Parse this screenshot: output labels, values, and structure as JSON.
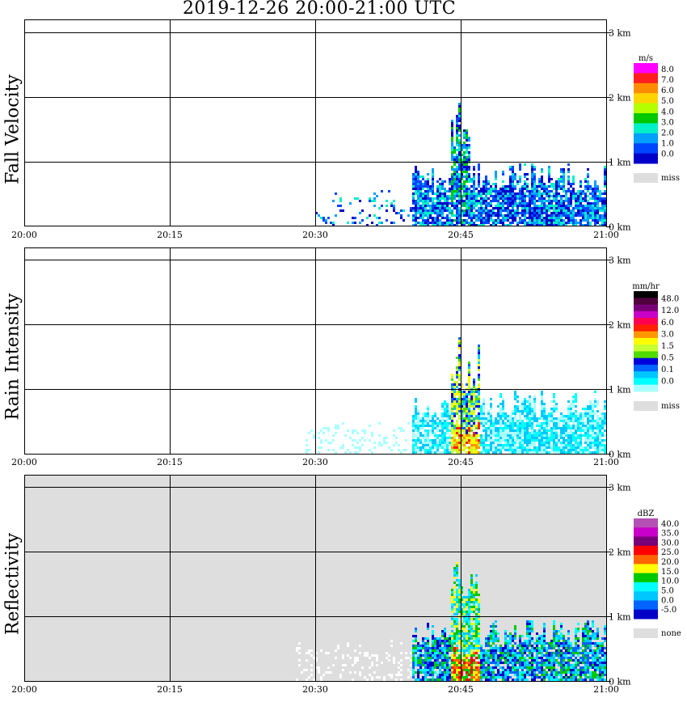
{
  "title": "2019-12-26   20:00-21:00 UTC",
  "x_ticks": [
    "20:00",
    "20:15",
    "20:30",
    "20:45",
    "21:00"
  ],
  "y_ticks": [
    "0 km",
    "1 km",
    "2 km",
    "3 km"
  ],
  "colors": {
    "background_missing": "#dedede",
    "grid": "#000000"
  },
  "chart_data": [
    {
      "type": "heatmap",
      "title": "Fall Velocity",
      "xlabel": "",
      "ylabel": "Fall Velocity",
      "xlim": [
        "20:00",
        "21:00"
      ],
      "ylim": [
        0,
        3.2
      ],
      "y_units": "km",
      "grid": true,
      "legend_position": "right",
      "colorbar": {
        "unit": "m/s",
        "labels": [
          "8.0",
          "7.0",
          "6.0",
          "5.0",
          "4.0",
          "3.0",
          "2.0",
          "1.0",
          "0.0"
        ],
        "colors": [
          "#ff00ff",
          "#ff1e1e",
          "#ff8c00",
          "#ffd400",
          "#b4ff00",
          "#00c800",
          "#00f0c8",
          "#00a0ff",
          "#0046ff",
          "#0000c8"
        ],
        "missing_label": "miss",
        "missing_color": "#dedede"
      },
      "echoes": [
        {
          "x_start": "20:30",
          "x_end": "20:40",
          "top_km": 0.6,
          "value": "0.0-2.0 (sparse)"
        },
        {
          "x_start": "20:40",
          "x_end": "20:44",
          "top_km": 1.0,
          "value": "1.0-2.0"
        },
        {
          "x_start": "20:44",
          "x_end": "20:45",
          "top_km": 2.0,
          "value": "1.0-3.0"
        },
        {
          "x_start": "20:45",
          "x_end": "20:46",
          "top_km": 1.8,
          "value": "1.0-4.0"
        },
        {
          "x_start": "20:46",
          "x_end": "21:00",
          "top_km": 1.0,
          "value": "0.0-2.0"
        }
      ]
    },
    {
      "type": "heatmap",
      "title": "Rain Intensity",
      "xlabel": "",
      "ylabel": "Rain Intensity",
      "xlim": [
        "20:00",
        "21:00"
      ],
      "ylim": [
        0,
        3.2
      ],
      "y_units": "km",
      "grid": true,
      "legend_position": "right",
      "colorbar": {
        "unit": "mm/hr",
        "labels": [
          "48.0",
          "12.0",
          "6.0",
          "3.0",
          "1.5",
          "0.5",
          "0.1",
          "0.0"
        ],
        "colors": [
          "#000000",
          "#50003c",
          "#780078",
          "#c800c8",
          "#ff0050",
          "#ff1e00",
          "#ff9600",
          "#ffff00",
          "#c8ff32",
          "#50dc00",
          "#0000dc",
          "#0064ff",
          "#00c8ff",
          "#00ffff",
          "#aaffff"
        ],
        "missing_label": "miss",
        "missing_color": "#dedede"
      },
      "echoes": [
        {
          "x_start": "20:29",
          "x_end": "20:40",
          "top_km": 0.6,
          "value": "0.0-0.1 (sparse)"
        },
        {
          "x_start": "20:40",
          "x_end": "20:44",
          "top_km": 0.9,
          "value": "0.1-0.5"
        },
        {
          "x_start": "20:44",
          "x_end": "20:45",
          "top_km": 2.0,
          "value": "0.5-3.0"
        },
        {
          "x_start": "20:45",
          "x_end": "20:47",
          "top_km": 1.8,
          "value": "1.5-12.0"
        },
        {
          "x_start": "20:47",
          "x_end": "21:00",
          "top_km": 1.0,
          "value": "0.0-0.1"
        }
      ]
    },
    {
      "type": "heatmap",
      "title": "Reflectivity",
      "xlabel": "",
      "ylabel": "Reflectivity",
      "xlim": [
        "20:00",
        "21:00"
      ],
      "ylim": [
        0,
        3.2
      ],
      "y_units": "km",
      "grid": true,
      "legend_position": "right",
      "colorbar": {
        "unit": "dBZ",
        "labels": [
          "40.0",
          "35.0",
          "30.0",
          "25.0",
          "20.0",
          "15.0",
          "10.0",
          "5.0",
          "0.0",
          "-5.0"
        ],
        "colors": [
          "#b450b4",
          "#c800c8",
          "#780078",
          "#ff0000",
          "#ff6400",
          "#ffff00",
          "#00c800",
          "#00ffff",
          "#00c8ff",
          "#0064ff",
          "#0000c8"
        ],
        "missing_label": "none",
        "missing_color": "#dedede"
      },
      "echoes": [
        {
          "x_start": "20:28",
          "x_end": "20:40",
          "top_km": 0.7,
          "value": "< -5.0 (sparse)"
        },
        {
          "x_start": "20:40",
          "x_end": "20:44",
          "top_km": 1.0,
          "value": "0.0-10.0"
        },
        {
          "x_start": "20:44",
          "x_end": "20:45",
          "top_km": 2.0,
          "value": "10.0-25.0"
        },
        {
          "x_start": "20:45",
          "x_end": "20:47",
          "top_km": 1.9,
          "value": "15.0-30.0"
        },
        {
          "x_start": "20:47",
          "x_end": "21:00",
          "top_km": 1.0,
          "value": "0.0-10.0"
        }
      ]
    }
  ]
}
